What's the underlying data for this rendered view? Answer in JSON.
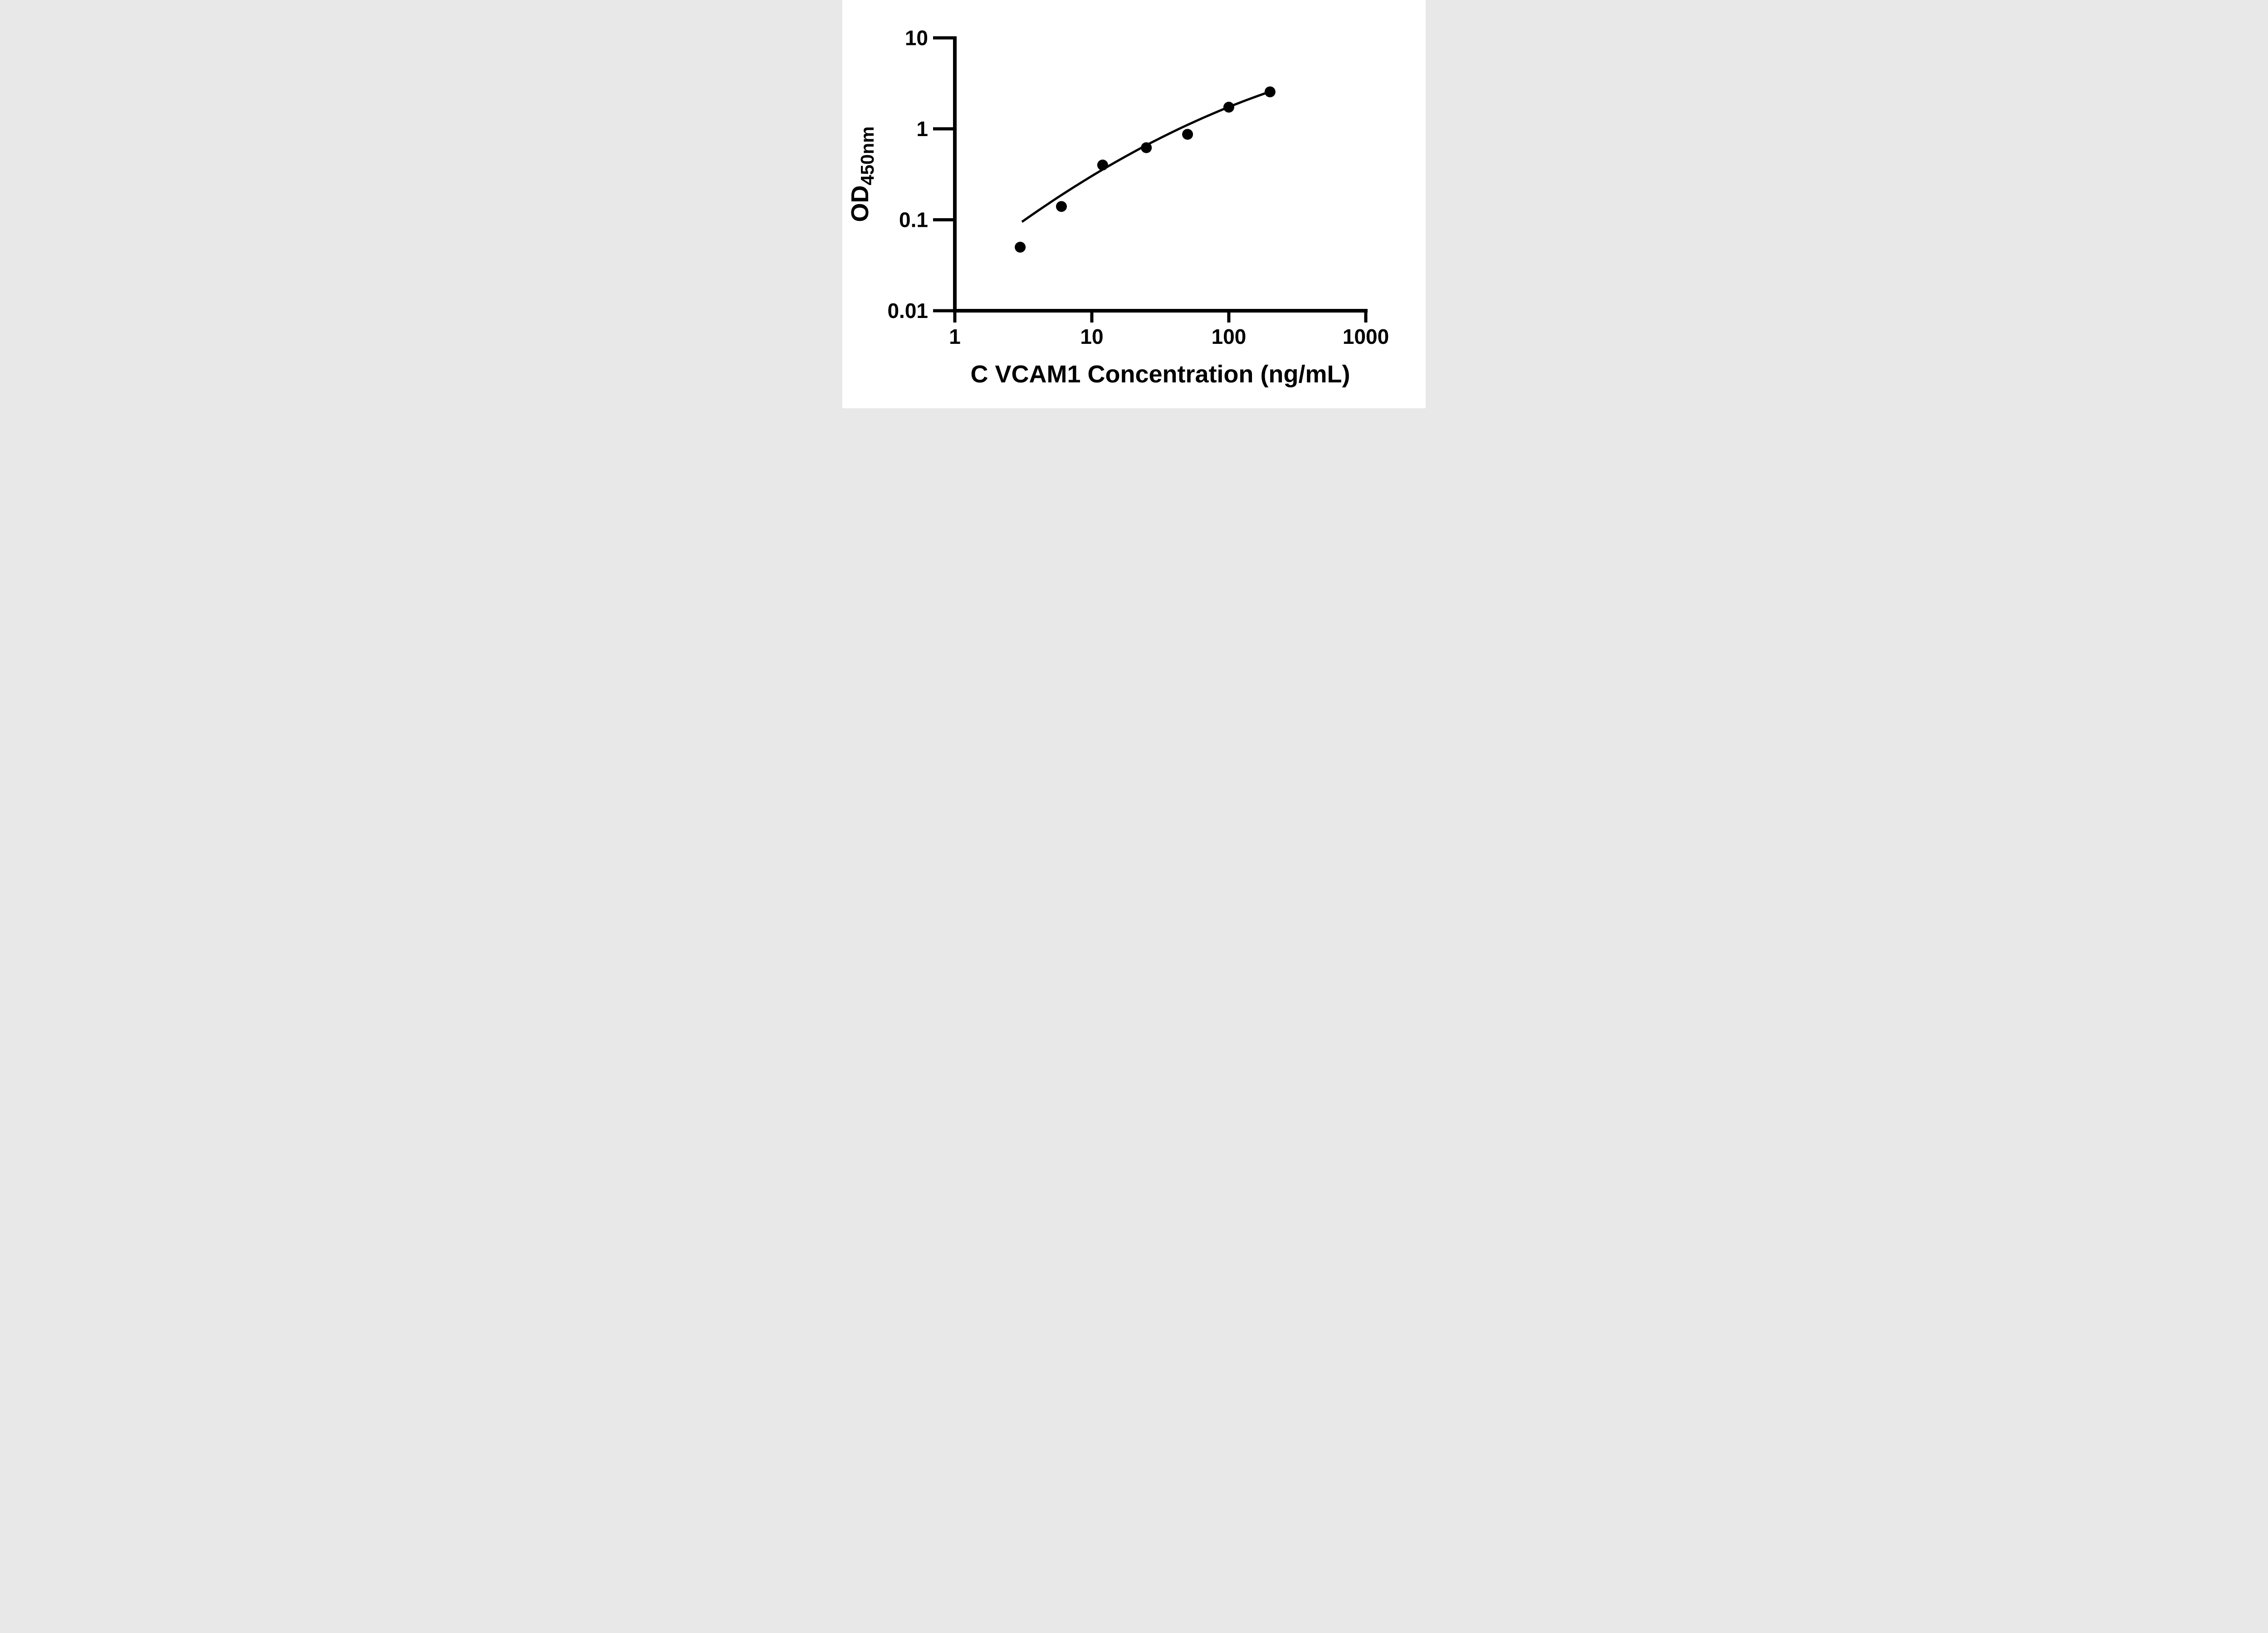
{
  "page": {
    "background_color": "#ffffff",
    "foreground_color": "#000000"
  },
  "chart_data": {
    "type": "scatter",
    "subtype": "elisa-standard-curve",
    "title": "",
    "xlabel": "C VCAM1 Concentration (ng/mL)",
    "ylabel": {
      "main": "OD",
      "subscript": "450nm"
    },
    "x_scale": "log10",
    "y_scale": "log10",
    "xlim": [
      1,
      1000
    ],
    "ylim": [
      0.01,
      10
    ],
    "grid": false,
    "legend": "none",
    "x_ticks": [
      {
        "value": 1,
        "label": "1"
      },
      {
        "value": 10,
        "label": "10"
      },
      {
        "value": 100,
        "label": "100"
      },
      {
        "value": 1000,
        "label": "1000"
      }
    ],
    "y_ticks": [
      {
        "value": 0.01,
        "label": "0.01"
      },
      {
        "value": 0.1,
        "label": "0.1"
      },
      {
        "value": 1,
        "label": "1"
      },
      {
        "value": 10,
        "label": "10"
      }
    ],
    "series": [
      {
        "name": "standard-points",
        "marker": "filled-circle",
        "color": "#000000",
        "points": [
          {
            "conc_ng_ml": 3,
            "od450": 0.05
          },
          {
            "conc_ng_ml": 6,
            "od450": 0.14
          },
          {
            "conc_ng_ml": 12,
            "od450": 0.4
          },
          {
            "conc_ng_ml": 25,
            "od450": 0.62
          },
          {
            "conc_ng_ml": 50,
            "od450": 0.87
          },
          {
            "conc_ng_ml": 100,
            "od450": 1.73
          },
          {
            "conc_ng_ml": 200,
            "od450": 2.55
          }
        ]
      }
    ],
    "fit_curve": {
      "name": "fit-line",
      "color": "#000000",
      "model": "quadratic-in-loglog",
      "coefficients": {
        "a": -0.152,
        "b": 1.215,
        "c": -1.582
      },
      "log10x_range": [
        0.49,
        2.301
      ]
    }
  }
}
